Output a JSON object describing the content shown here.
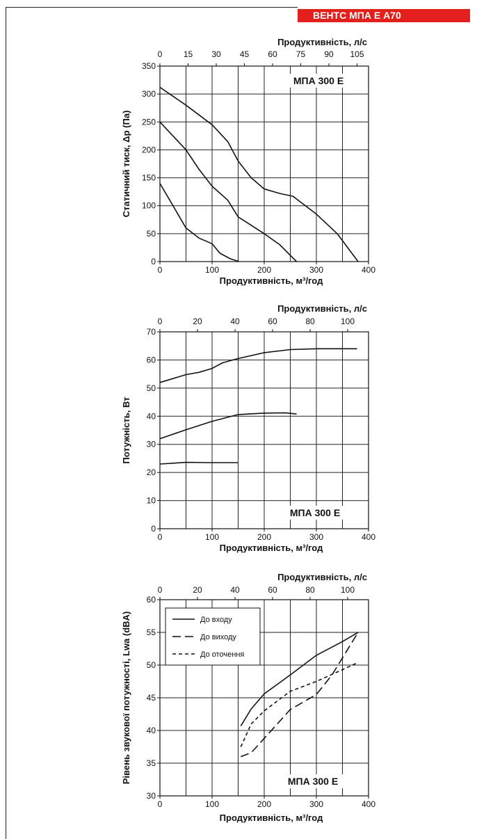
{
  "header": {
    "banner": "ВЕНТС МПА Е А70",
    "banner_color": "#e3201b"
  },
  "chart_data": [
    {
      "type": "line",
      "model_label": "МПА 300 Е",
      "top_axis_label": "Продуктивність, л/с",
      "top_ticks": [
        "0",
        "15",
        "30",
        "45",
        "60",
        "75",
        "90",
        "105"
      ],
      "xlabel": "Продуктивність, м³/год",
      "ylabel": "Статичний тиск, Δp (Па)",
      "xlim": [
        0,
        400
      ],
      "ylim": [
        0,
        350
      ],
      "x_ticks": [
        "0",
        "100",
        "200",
        "300",
        "400"
      ],
      "y_ticks": [
        "0",
        "50",
        "100",
        "150",
        "200",
        "250",
        "300",
        "350"
      ],
      "grid": true,
      "series": [
        {
          "points": [
            [
              0,
              312
            ],
            [
              50,
              280
            ],
            [
              100,
              245
            ],
            [
              130,
              215
            ],
            [
              150,
              180
            ],
            [
              175,
              150
            ],
            [
              200,
              130
            ],
            [
              230,
              122
            ],
            [
              255,
              117
            ],
            [
              300,
              85
            ],
            [
              340,
              50
            ],
            [
              380,
              0
            ]
          ]
        },
        {
          "points": [
            [
              0,
              250
            ],
            [
              50,
              200
            ],
            [
              75,
              165
            ],
            [
              100,
              135
            ],
            [
              130,
              110
            ],
            [
              150,
              80
            ],
            [
              175,
              65
            ],
            [
              200,
              50
            ],
            [
              230,
              30
            ],
            [
              262,
              0
            ]
          ]
        },
        {
          "points": [
            [
              0,
              140
            ],
            [
              25,
              100
            ],
            [
              50,
              60
            ],
            [
              75,
              42
            ],
            [
              100,
              32
            ],
            [
              115,
              15
            ],
            [
              135,
              5
            ],
            [
              152,
              0
            ]
          ]
        }
      ]
    },
    {
      "type": "line",
      "model_label": "МПА 300 Е",
      "top_axis_label": "Продуктивність, л/с",
      "top_ticks": [
        "0",
        "20",
        "40",
        "60",
        "80",
        "100"
      ],
      "xlabel": "Продуктивність, м³/год",
      "ylabel": "Потужність, Вт",
      "xlim": [
        0,
        400
      ],
      "ylim": [
        0,
        70
      ],
      "x_ticks": [
        "0",
        "100",
        "200",
        "300",
        "400"
      ],
      "y_ticks": [
        "0",
        "10",
        "20",
        "30",
        "40",
        "50",
        "60",
        "70"
      ],
      "grid": true,
      "series": [
        {
          "points": [
            [
              0,
              52
            ],
            [
              50,
              54.8
            ],
            [
              75,
              55.6
            ],
            [
              100,
              57
            ],
            [
              120,
              59
            ],
            [
              150,
              60.5
            ],
            [
              200,
              62.6
            ],
            [
              250,
              63.7
            ],
            [
              300,
              64
            ],
            [
              378,
              64
            ]
          ]
        },
        {
          "points": [
            [
              0,
              32
            ],
            [
              50,
              35.2
            ],
            [
              100,
              38.2
            ],
            [
              150,
              40.6
            ],
            [
              200,
              41.1
            ],
            [
              240,
              41.2
            ],
            [
              262,
              40.8
            ]
          ]
        },
        {
          "points": [
            [
              0,
              23
            ],
            [
              50,
              23.6
            ],
            [
              100,
              23.5
            ],
            [
              150,
              23.5
            ]
          ]
        }
      ]
    },
    {
      "type": "line",
      "model_label": "МПА 300 Е",
      "top_axis_label": "Продуктивність, л/с",
      "top_ticks": [
        "0",
        "20",
        "40",
        "60",
        "80",
        "100"
      ],
      "xlabel": "Продуктивність, м³/год",
      "ylabel": "Рівень звукової потужності, Lwa (dBA)",
      "xlim": [
        0,
        400
      ],
      "ylim": [
        30,
        60
      ],
      "x_ticks": [
        "0",
        "100",
        "200",
        "300",
        "400"
      ],
      "y_ticks": [
        "30",
        "35",
        "40",
        "45",
        "50",
        "55",
        "60"
      ],
      "grid": true,
      "legend": "top-left",
      "series": [
        {
          "name": "До входу",
          "dash": "solid",
          "points": [
            [
              155,
              40.7
            ],
            [
              175,
              43.3
            ],
            [
              200,
              45.6
            ],
            [
              250,
              48.5
            ],
            [
              300,
              51.5
            ],
            [
              350,
              53.6
            ],
            [
              380,
              55
            ]
          ]
        },
        {
          "name": "До виходу",
          "dash": "long",
          "points": [
            [
              155,
              36
            ],
            [
              175,
              36.6
            ],
            [
              200,
              38.8
            ],
            [
              250,
              43.2
            ],
            [
              300,
              45.5
            ],
            [
              330,
              48.5
            ],
            [
              380,
              55
            ]
          ]
        },
        {
          "name": "До оточення",
          "dash": "short",
          "points": [
            [
              155,
              37.5
            ],
            [
              175,
              41
            ],
            [
              200,
              43
            ],
            [
              250,
              46
            ],
            [
              300,
              47.5
            ],
            [
              350,
              49.3
            ],
            [
              380,
              50.4
            ]
          ]
        }
      ]
    }
  ]
}
